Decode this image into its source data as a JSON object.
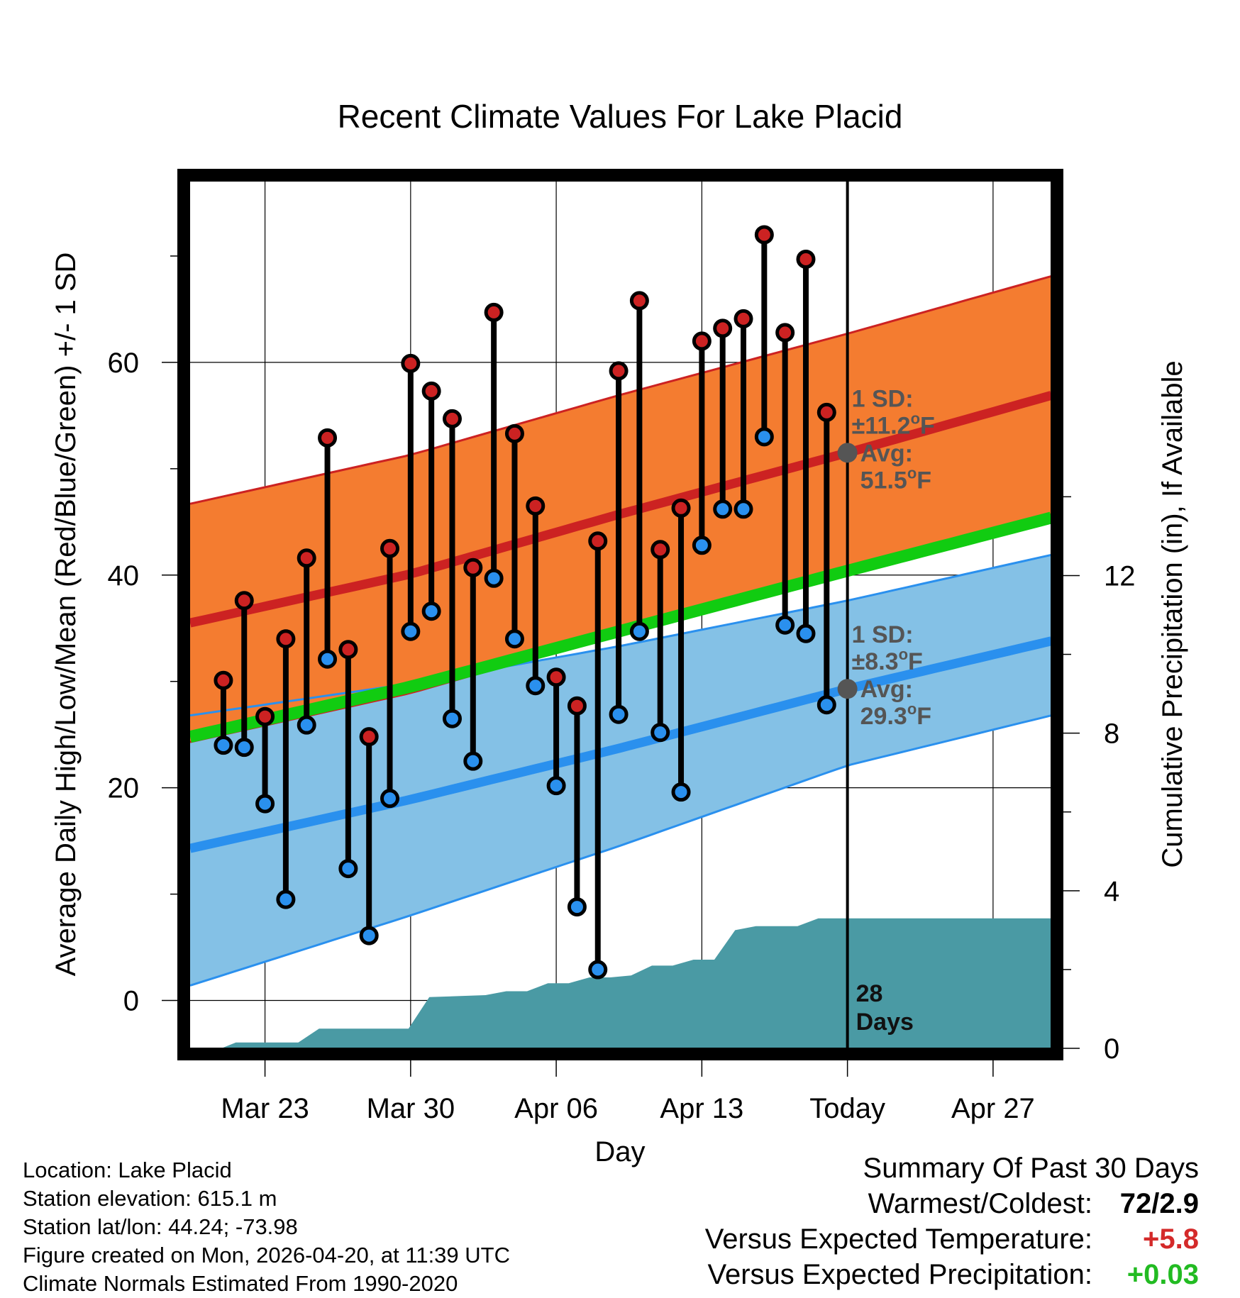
{
  "chart_data": {
    "type": "line",
    "title": "Recent Climate Values For Lake Placid",
    "xlabel": "Day",
    "ylabel": "Average Daily High/Low/Mean (Red/Blue/Green) +/- 1 SD",
    "y2label": "Cumulative Precipitation (in), If Available",
    "xlim": [
      -0.6,
      40.8
    ],
    "ylim": [
      -4.5,
      77
    ],
    "y2lim": [
      0,
      22
    ],
    "yticks": [
      0,
      20,
      40,
      60
    ],
    "y2ticks": [
      0,
      4,
      8,
      12
    ],
    "xticks": [
      {
        "x": 3,
        "label": "Mar 23"
      },
      {
        "x": 10,
        "label": "Mar 30"
      },
      {
        "x": 17,
        "label": "Apr 06"
      },
      {
        "x": 24,
        "label": "Apr 13"
      },
      {
        "x": 31,
        "label": "Today"
      },
      {
        "x": 38,
        "label": "Apr 27"
      }
    ],
    "today_x": 31,
    "days_label": [
      "28",
      "Days"
    ],
    "normals": {
      "x": [
        -0.6,
        10,
        20,
        31,
        40.8
      ],
      "high_mean": [
        35.5,
        40.1,
        45.7,
        51.5,
        56.9
      ],
      "high_sd": 11.2,
      "low_mean": [
        14.3,
        18.9,
        23.7,
        29.3,
        33.8
      ],
      "low_upper": [
        26.8,
        29.8,
        33.3,
        37.6,
        41.9
      ],
      "low_lower": [
        1.4,
        8.0,
        14.5,
        22.1,
        26.8
      ],
      "mean": [
        24.8,
        29.5,
        34.7,
        40.4,
        45.4
      ]
    },
    "series": [
      {
        "name": "Daily High",
        "color": "#cc2222",
        "x": [
          1,
          2,
          3,
          4,
          5,
          6,
          7,
          8,
          9,
          10,
          11,
          12,
          13,
          14,
          15,
          16,
          17,
          18,
          19,
          20,
          21,
          22,
          23,
          24,
          25,
          26,
          27,
          28,
          29,
          30
        ],
        "values": [
          30.1,
          37.6,
          26.7,
          34,
          41.6,
          52.9,
          33,
          24.8,
          42.5,
          59.9,
          57.3,
          54.7,
          40.7,
          64.7,
          53.3,
          46.5,
          30.4,
          27.7,
          43.2,
          59.2,
          65.8,
          42.4,
          46.3,
          62,
          63.2,
          64.1,
          72,
          62.8,
          69.7,
          55.3
        ]
      },
      {
        "name": "Daily Low",
        "color": "#2a90ee",
        "x": [
          1,
          2,
          3,
          4,
          5,
          6,
          7,
          8,
          9,
          10,
          11,
          12,
          13,
          14,
          15,
          16,
          17,
          18,
          19,
          20,
          21,
          22,
          23,
          24,
          25,
          26,
          27,
          28,
          29,
          30
        ],
        "values": [
          24,
          23.8,
          18.5,
          9.5,
          25.9,
          32.1,
          12.4,
          6.1,
          19,
          34.7,
          36.6,
          26.5,
          22.5,
          39.7,
          34,
          29.6,
          20.2,
          8.8,
          2.9,
          26.9,
          34.7,
          25.2,
          19.6,
          42.8,
          46.2,
          46.2,
          53,
          35.3,
          34.5,
          27.8
        ]
      },
      {
        "name": "Cumulative Precipitation",
        "color": "#4a9aa4",
        "x": [
          -0.6,
          0.9,
          1.6,
          4.6,
          5.6,
          6.6,
          9.9,
          10.9,
          13.6,
          14.6,
          15.6,
          16.6,
          17.6,
          18.6,
          19.6,
          20.6,
          21.6,
          22.6,
          23.6,
          24.6,
          25.6,
          26.6,
          28.6,
          29.6,
          31,
          40.8
        ],
        "values": [
          0,
          0,
          0.15,
          0.15,
          0.5,
          0.5,
          0.5,
          1.3,
          1.35,
          1.45,
          1.45,
          1.65,
          1.65,
          1.8,
          1.8,
          1.85,
          2.1,
          2.1,
          2.25,
          2.25,
          3.0,
          3.1,
          3.1,
          3.3,
          3.3,
          3.3
        ]
      }
    ],
    "annotations": {
      "high": {
        "line1": "1 SD:",
        "line2": "±11.2",
        "line3": "Avg:",
        "line4": "51.5",
        "unit": "F",
        "deg": "o",
        "value": 51.5
      },
      "low": {
        "line1": "1 SD:",
        "line2": "±8.3",
        "line3": "Avg:",
        "line4": "29.3",
        "unit": "F",
        "deg": "o",
        "value": 29.3
      }
    }
  },
  "footer": {
    "location": "Location: Lake Placid",
    "elevation": "Station elevation: 615.1 m",
    "latlon": "Station lat/lon: 44.24; -73.98",
    "created": "Figure created on Mon, 2026-04-20, at 11:39 UTC",
    "normals": "Climate Normals Estimated From 1990-2020"
  },
  "summary": {
    "heading": "Summary Of Past 30 Days",
    "warmest_label": "Warmest/Coldest:",
    "warmest_value": "72/2.9",
    "temp_label": "Versus Expected Temperature:",
    "temp_value": "+5.8",
    "temp_color": "#d42a2a",
    "precip_label": "Versus Expected Precipitation:",
    "precip_value": "+0.03",
    "precip_color": "#22bb22"
  }
}
